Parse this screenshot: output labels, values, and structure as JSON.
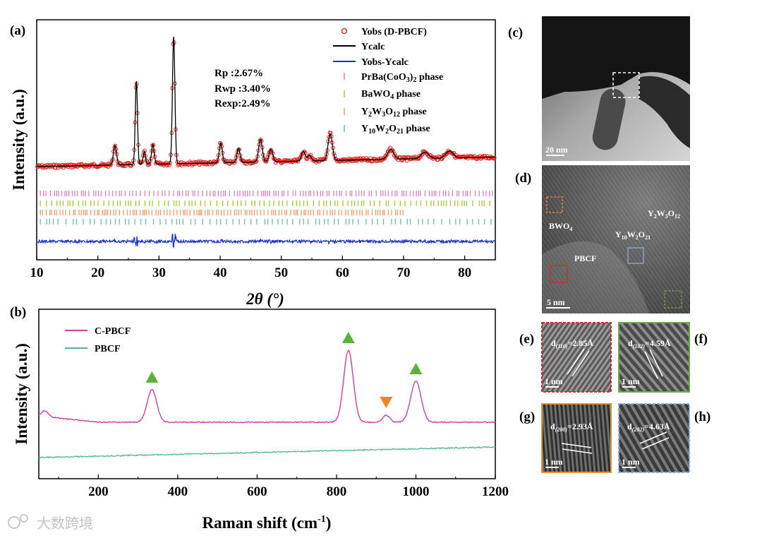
{
  "watermark": "大数跨境",
  "panels": {
    "a": "(a)",
    "b": "(b)",
    "c": "(c)",
    "d": "(d)",
    "e": "(e)",
    "f": "(f)",
    "g": "(g)",
    "h": "(h)"
  },
  "colors": {
    "obs": "#e0271f",
    "calc": "#000000",
    "diff": "#1a2fd6",
    "c_pbcf": "#d1409f",
    "pbcf": "#4fb596",
    "tick_pr": "#e27fc7",
    "tick_bawo4": "#9ccc3a",
    "tick_y2w3o12": "#f29a68",
    "tick_y10": "#5fc4ac",
    "peak_up": "#5db03a",
    "peak_down": "#f0822a",
    "frame_e": "#d62a2a",
    "frame_f": "#6aa84f",
    "frame_g": "#e69138",
    "frame_h": "#8eaadb"
  },
  "chart_data": [
    {
      "type": "line",
      "panel": "(a)",
      "title": "",
      "xlabel": "2θ (°)",
      "ylabel": "Intensity (a.u.)",
      "xlim": [
        10,
        85
      ],
      "xticks": [
        10,
        20,
        30,
        40,
        50,
        60,
        70,
        80
      ],
      "series": [
        {
          "name": "Yobs (D-PBCF)",
          "style": "open circles"
        },
        {
          "name": "Ycalc",
          "style": "line"
        },
        {
          "name": "Yobs-Ycalc",
          "style": "line"
        }
      ],
      "peaks_2theta": [
        22.8,
        26.3,
        27.6,
        29.0,
        32.4,
        40.1,
        43.0,
        46.6,
        48.3,
        53.6,
        58.0,
        67.9,
        73.5,
        77.5
      ],
      "phases": [
        "PrBa(CoO3)2 phase",
        "BaWO4 phase",
        "Y2W3O12 phase",
        "Y10W2O21 phase"
      ],
      "fit": {
        "rp": "Rp    :2.67%",
        "rwp": "Rwp :3.40%",
        "rexp": "Rexp:2.49%"
      }
    },
    {
      "type": "line",
      "panel": "(b)",
      "title": "",
      "xlabel": "Raman shift (cm-1)",
      "ylabel": "Intensity (a.u.)",
      "xlim": [
        50,
        1200
      ],
      "xticks": [
        200,
        400,
        600,
        800,
        1000,
        1200
      ],
      "series": [
        {
          "name": "C-PBCF",
          "peaks": [
            335,
            830,
            925,
            1000
          ]
        },
        {
          "name": "PBCF",
          "peaks": []
        }
      ],
      "markers": [
        {
          "x": 335,
          "shape": "triangle-up"
        },
        {
          "x": 830,
          "shape": "triangle-up"
        },
        {
          "x": 925,
          "shape": "triangle-down"
        },
        {
          "x": 1000,
          "shape": "triangle-up"
        }
      ]
    }
  ],
  "images": {
    "c": {
      "scale": "20 nm"
    },
    "d": {
      "scale": "5 nm",
      "labels": [
        "BWO4",
        "Y2W3O12",
        "Y10W2O21",
        "PBCF"
      ]
    },
    "e": {
      "scale": "1 nm",
      "d": "d(110)=2.85Å"
    },
    "f": {
      "scale": "1 nm",
      "d": "d(102)=4.59Å"
    },
    "g": {
      "scale": "1 nm",
      "d": "d(200)=2.93Å"
    },
    "h": {
      "scale": "1 nm",
      "d": "d(202)=4.63Å"
    }
  }
}
